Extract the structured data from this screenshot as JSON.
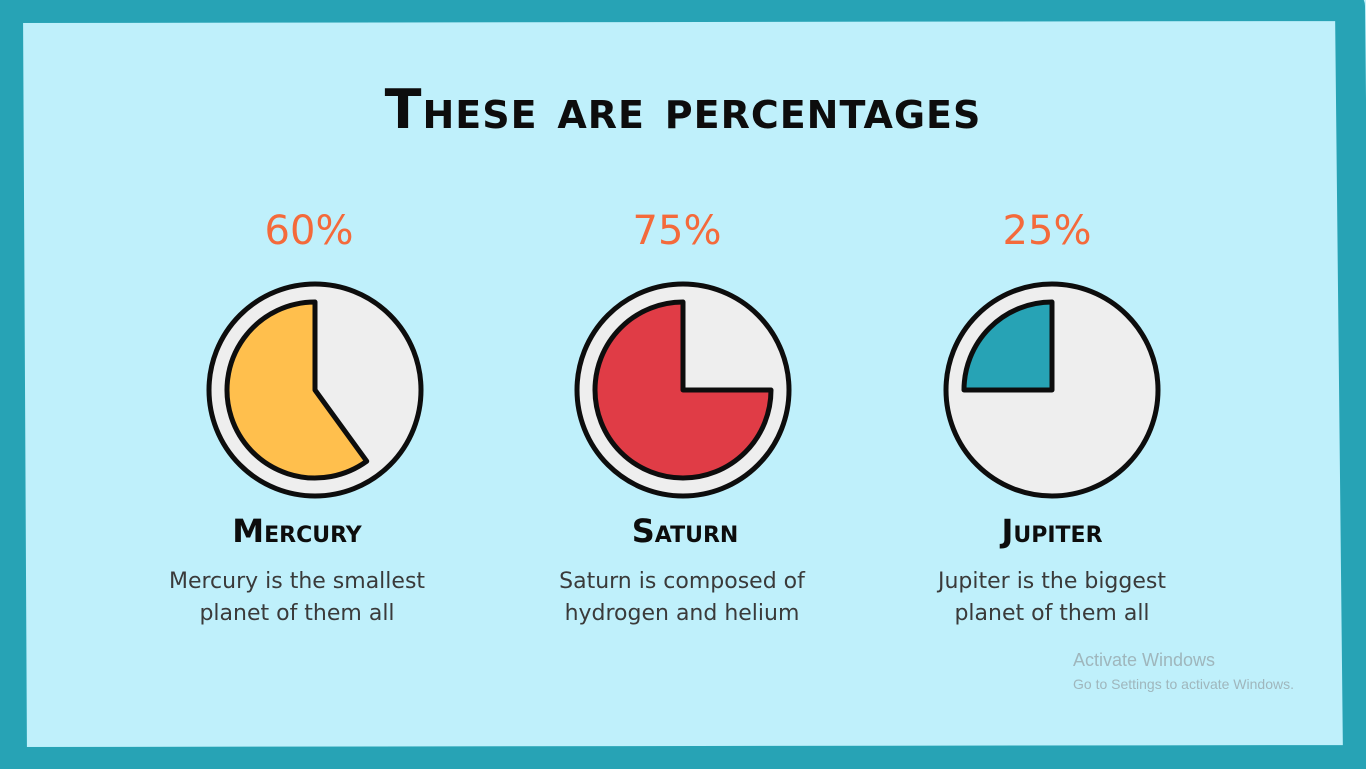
{
  "slide": {
    "title": "These are percentages",
    "colors": {
      "background": "#bff0fb",
      "frame": "#27a3b5",
      "accent_text": "#f46a3b",
      "pie_remainder": "#eeeeee"
    }
  },
  "chart_data": [
    {
      "type": "pie",
      "value_label": "60%",
      "percent": 60,
      "color": "#ffbf4d",
      "name": "Mercury",
      "description_lines": [
        "Mercury is the smallest",
        "planet of them all"
      ]
    },
    {
      "type": "pie",
      "value_label": "75%",
      "percent": 75,
      "color": "#e03c46",
      "name": "Saturn",
      "description_lines": [
        "Saturn is composed of",
        "hydrogen and helium"
      ]
    },
    {
      "type": "pie",
      "value_label": "25%",
      "percent": 25,
      "color": "#27a3b5",
      "name": "Jupiter",
      "description_lines": [
        "Jupiter is the biggest",
        "planet of them all"
      ]
    }
  ],
  "watermark": {
    "title": "Activate Windows",
    "subtitle": "Go to Settings to activate Windows."
  }
}
